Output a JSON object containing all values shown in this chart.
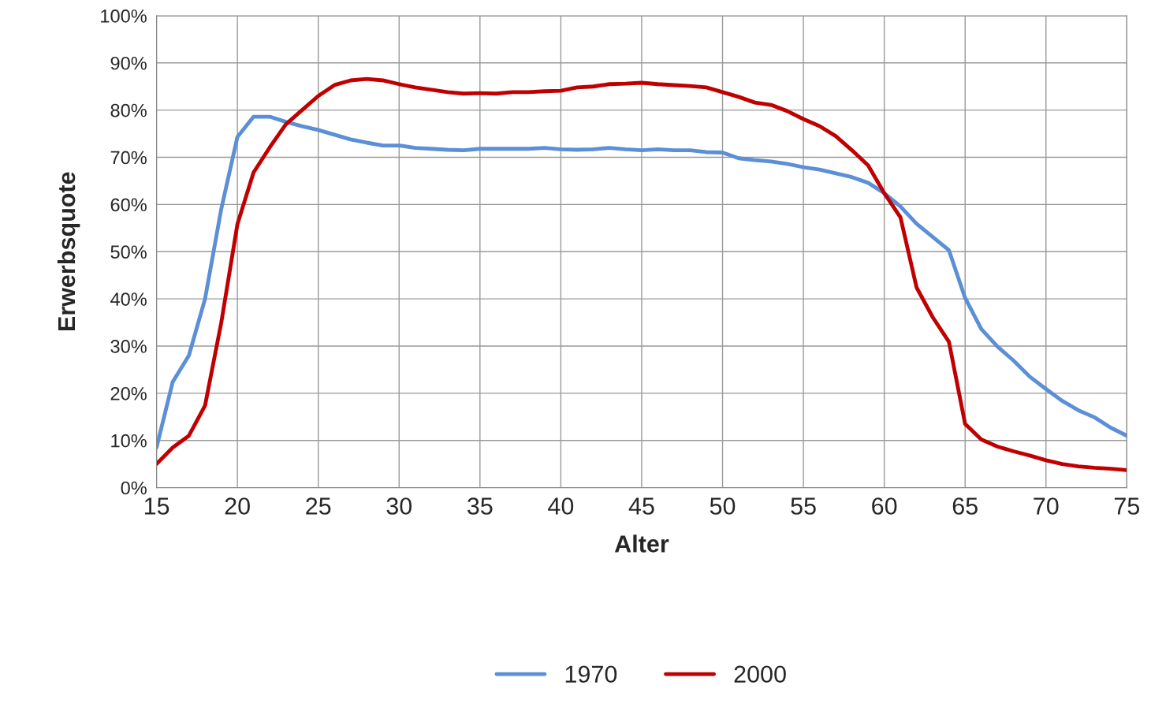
{
  "chart_data": {
    "type": "line",
    "xlabel": "Alter",
    "ylabel": "Erwerbsquote",
    "x": [
      15,
      16,
      17,
      18,
      19,
      20,
      21,
      22,
      23,
      24,
      25,
      26,
      27,
      28,
      29,
      30,
      31,
      32,
      33,
      34,
      35,
      36,
      37,
      38,
      39,
      40,
      41,
      42,
      43,
      44,
      45,
      46,
      47,
      48,
      49,
      50,
      51,
      52,
      53,
      54,
      55,
      56,
      57,
      58,
      59,
      60,
      61,
      62,
      63,
      64,
      65,
      66,
      67,
      68,
      69,
      70,
      71,
      72,
      73,
      74,
      75
    ],
    "series": [
      {
        "name": "1970",
        "color": "#5b8fd6",
        "values": [
          8.5,
          22.4,
          28,
          40,
          59,
          74.3,
          78.6,
          78.6,
          77.5,
          76.6,
          75.8,
          74.8,
          73.8,
          73.1,
          72.5,
          72.5,
          72,
          71.8,
          71.6,
          71.5,
          71.8,
          71.8,
          71.8,
          71.8,
          72,
          71.7,
          71.6,
          71.7,
          72,
          71.7,
          71.5,
          71.7,
          71.5,
          71.5,
          71.1,
          71,
          69.8,
          69.4,
          69.1,
          68.6,
          67.9,
          67.4,
          66.6,
          65.8,
          64.6,
          62.4,
          59.6,
          55.9,
          53.1,
          50.3,
          40.2,
          33.6,
          29.9,
          26.9,
          23.5,
          20.9,
          18.4,
          16.4,
          14.9,
          12.7,
          11
        ]
      },
      {
        "name": "2000",
        "color": "#c00000",
        "values": [
          5,
          8.5,
          11,
          17.4,
          34.9,
          55.8,
          66.8,
          72.1,
          77,
          80,
          83,
          85.3,
          86.3,
          86.6,
          86.3,
          85.5,
          84.8,
          84.3,
          83.8,
          83.5,
          83.6,
          83.5,
          83.8,
          83.8,
          84,
          84.1,
          84.8,
          85,
          85.5,
          85.6,
          85.8,
          85.5,
          85.3,
          85.1,
          84.8,
          83.8,
          82.8,
          81.6,
          81.1,
          79.8,
          78.1,
          76.6,
          74.5,
          71.5,
          68.3,
          62.4,
          57.3,
          42.4,
          36.1,
          30.9,
          13.5,
          10.2,
          8.7,
          7.7,
          6.8,
          5.8,
          5,
          4.5,
          4.2,
          4,
          3.7
        ]
      }
    ],
    "xlim": [
      15,
      75
    ],
    "xticks": [
      15,
      20,
      25,
      30,
      35,
      40,
      45,
      50,
      55,
      60,
      65,
      70,
      75
    ],
    "ylim": [
      0,
      100
    ],
    "yticks": [
      {
        "value": 0,
        "label": "0%"
      },
      {
        "value": 10,
        "label": "10%"
      },
      {
        "value": 20,
        "label": "20%"
      },
      {
        "value": 30,
        "label": "30%"
      },
      {
        "value": 40,
        "label": "40%"
      },
      {
        "value": 50,
        "label": "50%"
      },
      {
        "value": 60,
        "label": "60%"
      },
      {
        "value": 70,
        "label": "70%"
      },
      {
        "value": 80,
        "label": "80%"
      },
      {
        "value": 90,
        "label": "90%"
      },
      {
        "value": 100,
        "label": "100%"
      }
    ],
    "grid": true,
    "legend": "bottom",
    "marker": "none",
    "line_style": "solid"
  }
}
